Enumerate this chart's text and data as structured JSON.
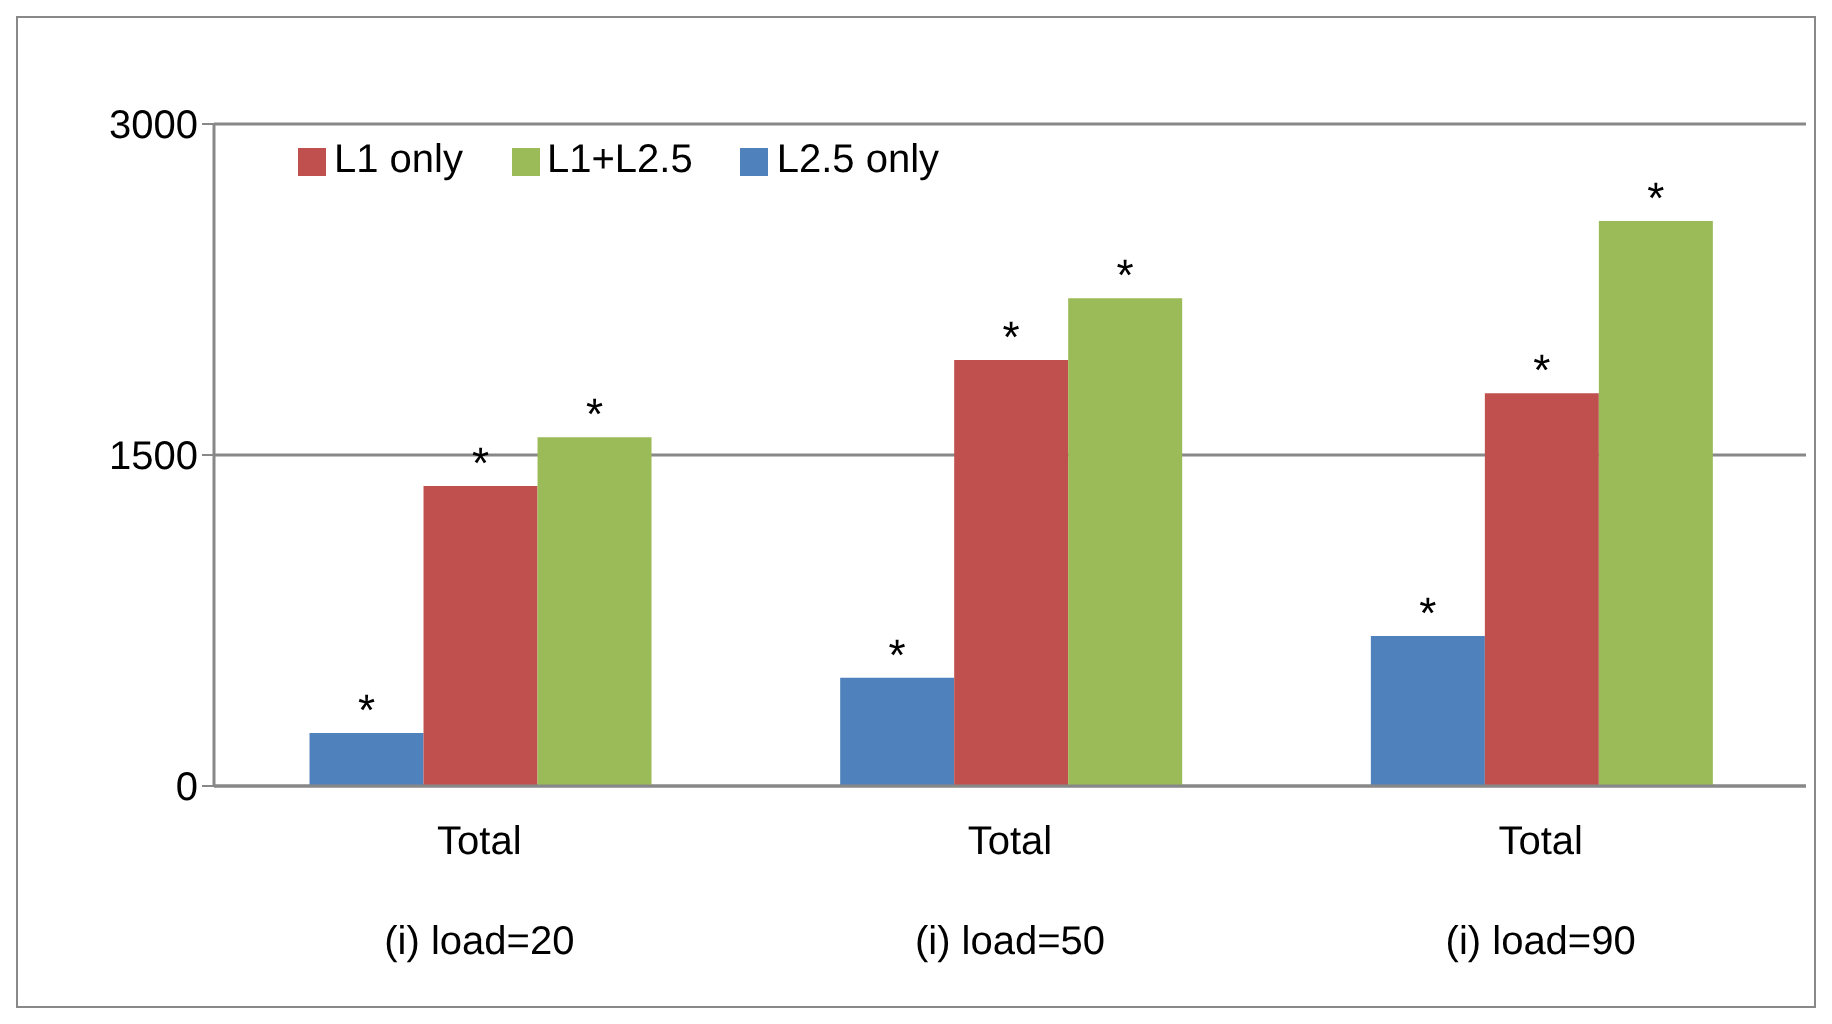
{
  "chart_data": {
    "type": "bar",
    "categories": [
      "Total\n(i) load=20",
      "Total\n(i) load=50",
      "Total\n(i) load=90"
    ],
    "series": [
      {
        "name": "L2.5 only",
        "color": "#4f81bd",
        "values": [
          240,
          490,
          680
        ],
        "value_labels": [
          "*",
          "*",
          "*"
        ]
      },
      {
        "name": "L1 only",
        "color": "#c0504d",
        "values": [
          1360,
          1930,
          1780
        ],
        "value_labels": [
          "*",
          "*",
          "*"
        ]
      },
      {
        "name": "L1+L2.5",
        "color": "#9bbb59",
        "values": [
          1580,
          2210,
          2560
        ],
        "value_labels": [
          "*",
          "*",
          "*"
        ]
      }
    ],
    "ylim": [
      0,
      3000
    ],
    "yticks": [
      0,
      1500,
      3000
    ],
    "grid": "y",
    "legend": "top left"
  }
}
